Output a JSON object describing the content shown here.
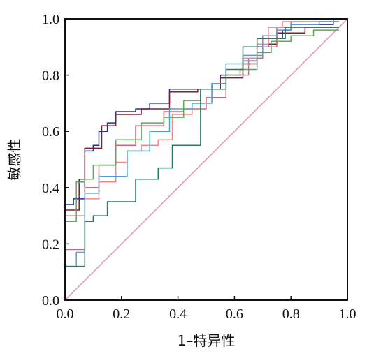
{
  "chart_data": {
    "type": "line",
    "title": "",
    "xlabel": "1–特异性",
    "ylabel": "敏感性",
    "xlim": [
      0.0,
      1.0
    ],
    "ylim": [
      0.0,
      1.0
    ],
    "xticks": [
      "0.0",
      "0.2",
      "0.4",
      "0.6",
      "0.8",
      "1.0"
    ],
    "yticks": [
      "0.0",
      "0.2",
      "0.4",
      "0.6",
      "0.8",
      "1.0"
    ],
    "grid": false,
    "legend": "none",
    "reference_line": {
      "x": [
        0,
        1
      ],
      "y": [
        0,
        1
      ],
      "color": "#e88fb4"
    },
    "series": [
      {
        "color": "#1f2fa0",
        "x": [
          0,
          0,
          0.03,
          0.03,
          0.07,
          0.07,
          0.1,
          0.1,
          0.12,
          0.12,
          0.15,
          0.15,
          0.18,
          0.18,
          0.25,
          0.25,
          0.3,
          0.3,
          0.37,
          0.37,
          0.52,
          0.52,
          0.55,
          0.55,
          0.63,
          0.63,
          0.68,
          0.68,
          0.72,
          0.72,
          0.77,
          0.77,
          0.8,
          0.8,
          0.95,
          0.95,
          0.97
        ],
        "y": [
          0,
          0.34,
          0.34,
          0.36,
          0.36,
          0.53,
          0.53,
          0.55,
          0.55,
          0.6,
          0.6,
          0.63,
          0.63,
          0.67,
          0.67,
          0.68,
          0.68,
          0.7,
          0.7,
          0.75,
          0.75,
          0.77,
          0.77,
          0.8,
          0.8,
          0.85,
          0.85,
          0.9,
          0.9,
          0.93,
          0.93,
          0.96,
          0.96,
          0.98,
          0.98,
          1.0,
          1.0
        ]
      },
      {
        "color": "#7a1f3a",
        "x": [
          0,
          0,
          0.05,
          0.05,
          0.07,
          0.07,
          0.13,
          0.13,
          0.18,
          0.18,
          0.27,
          0.27,
          0.37,
          0.37,
          0.47,
          0.47,
          0.55,
          0.55,
          0.63,
          0.63,
          0.68,
          0.68,
          0.75,
          0.75,
          0.85,
          0.85,
          0.97
        ],
        "y": [
          0,
          0.32,
          0.32,
          0.43,
          0.43,
          0.54,
          0.54,
          0.62,
          0.62,
          0.66,
          0.66,
          0.68,
          0.68,
          0.74,
          0.74,
          0.75,
          0.75,
          0.79,
          0.79,
          0.84,
          0.84,
          0.91,
          0.91,
          0.95,
          0.95,
          0.97,
          0.97
        ]
      },
      {
        "color": "#e06070",
        "x": [
          0,
          0,
          0.07,
          0.07,
          0.12,
          0.12,
          0.18,
          0.18,
          0.25,
          0.25,
          0.35,
          0.35,
          0.42,
          0.42,
          0.5,
          0.5,
          0.57,
          0.57,
          0.65,
          0.65,
          0.7,
          0.7,
          0.75,
          0.75,
          0.8,
          0.8,
          0.97
        ],
        "y": [
          0,
          0.18,
          0.18,
          0.4,
          0.4,
          0.48,
          0.48,
          0.55,
          0.55,
          0.62,
          0.62,
          0.67,
          0.67,
          0.68,
          0.68,
          0.72,
          0.72,
          0.8,
          0.8,
          0.86,
          0.86,
          0.9,
          0.9,
          0.97,
          0.97,
          0.99,
          0.99
        ]
      },
      {
        "color": "#f08888",
        "x": [
          0,
          0,
          0.07,
          0.07,
          0.12,
          0.12,
          0.18,
          0.18,
          0.22,
          0.22,
          0.27,
          0.27,
          0.33,
          0.33,
          0.38,
          0.38,
          0.45,
          0.45,
          0.52,
          0.52,
          0.57,
          0.57,
          0.63,
          0.63,
          0.68,
          0.68,
          0.72,
          0.72,
          0.77,
          0.77,
          0.97
        ],
        "y": [
          0,
          0.3,
          0.3,
          0.36,
          0.36,
          0.42,
          0.42,
          0.49,
          0.49,
          0.53,
          0.53,
          0.55,
          0.55,
          0.57,
          0.57,
          0.66,
          0.66,
          0.7,
          0.7,
          0.75,
          0.75,
          0.8,
          0.8,
          0.86,
          0.86,
          0.91,
          0.91,
          0.97,
          0.97,
          0.99,
          0.99
        ]
      },
      {
        "color": "#4aa0e0",
        "x": [
          0,
          0,
          0.04,
          0.04,
          0.07,
          0.07,
          0.12,
          0.12,
          0.22,
          0.22,
          0.3,
          0.3,
          0.37,
          0.37,
          0.45,
          0.45,
          0.52,
          0.52,
          0.57,
          0.57,
          0.63,
          0.63,
          0.7,
          0.7,
          0.75,
          0.75,
          0.8,
          0.8,
          0.9,
          0.9,
          0.97
        ],
        "y": [
          0,
          0.12,
          0.12,
          0.17,
          0.17,
          0.38,
          0.38,
          0.44,
          0.44,
          0.53,
          0.53,
          0.6,
          0.6,
          0.68,
          0.68,
          0.7,
          0.7,
          0.77,
          0.77,
          0.84,
          0.84,
          0.87,
          0.87,
          0.94,
          0.94,
          0.96,
          0.96,
          0.98,
          0.98,
          0.99,
          0.99
        ]
      },
      {
        "color": "#5aa85a",
        "x": [
          0,
          0,
          0.04,
          0.04,
          0.07,
          0.07,
          0.1,
          0.1,
          0.18,
          0.18,
          0.27,
          0.27,
          0.35,
          0.35,
          0.42,
          0.42,
          0.48,
          0.48,
          0.57,
          0.57,
          0.62,
          0.62,
          0.68,
          0.68,
          0.73,
          0.73,
          0.8,
          0.8,
          0.88,
          0.88,
          0.97
        ],
        "y": [
          0,
          0.28,
          0.28,
          0.42,
          0.42,
          0.43,
          0.43,
          0.48,
          0.48,
          0.57,
          0.57,
          0.63,
          0.63,
          0.65,
          0.65,
          0.71,
          0.71,
          0.75,
          0.75,
          0.8,
          0.8,
          0.82,
          0.82,
          0.88,
          0.88,
          0.92,
          0.92,
          0.94,
          0.94,
          0.96,
          0.96
        ]
      },
      {
        "color": "#2a7a5a",
        "x": [
          0,
          0,
          0.07,
          0.07,
          0.1,
          0.1,
          0.15,
          0.15,
          0.25,
          0.25,
          0.33,
          0.33,
          0.38,
          0.38,
          0.48,
          0.48,
          0.57,
          0.57,
          0.63,
          0.63,
          0.68,
          0.68,
          0.78,
          0.78,
          0.97
        ],
        "y": [
          0,
          0.12,
          0.12,
          0.28,
          0.28,
          0.3,
          0.3,
          0.35,
          0.35,
          0.43,
          0.43,
          0.47,
          0.47,
          0.55,
          0.55,
          0.75,
          0.75,
          0.82,
          0.82,
          0.9,
          0.9,
          0.93,
          0.93,
          0.97,
          0.97
        ]
      }
    ]
  }
}
